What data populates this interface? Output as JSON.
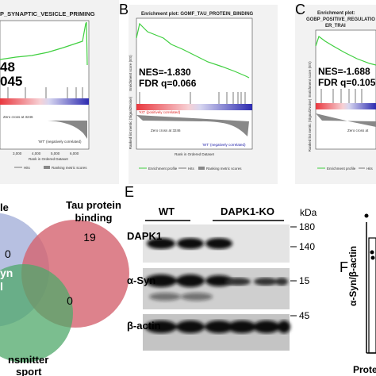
{
  "panel_a": {
    "title": "P_SYNAPTIC_VESICLE_PRIMING",
    "nes": "48",
    "fdr": "045",
    "neg_label": "'WT' (negatively correlated)",
    "zero_label": "Zero cross at 3246",
    "xticks": [
      "3,000",
      "4,000",
      "5,000",
      "6,000"
    ],
    "xlabel": "Rank in Ordered Dataset",
    "legend": [
      "Hits",
      "Ranking metric scores"
    ]
  },
  "panel_b": {
    "letter": "B",
    "title": "Enrichment plot: GOMF_TAU_PROTEIN_BINDING",
    "nes": "NES=-1.830",
    "fdr": "FDR q=0.066",
    "ylabel": "Enrichment score (ES)",
    "ylabel2": "Ranked list metric (Signal2Noise)",
    "pos_label": "'KO' (positively correlated)",
    "neg_label": "'WT' (negatively correlated)",
    "zero_label": "Zero cross at 3246",
    "xlabel": "Rank in Ordered Dataset",
    "legend": [
      "Enrichment profile",
      "Hits",
      "Ranking metric scores"
    ]
  },
  "panel_c": {
    "letter": "C",
    "title": [
      "Enrichment plot:",
      "GOBP_POSITIVE_REGULATIO",
      "ER_TRAI"
    ],
    "nes": "NES=-1.688",
    "fdr": "FDR q=0.105",
    "ylabel": "Enrichment score (ES)",
    "ylabel2": "Ranked list metric (Signal2Noise)",
    "zero_label": "Zero cross at",
    "legend": [
      "Enrichment profile",
      "Hits"
    ]
  },
  "panel_d": {
    "set_left": "le",
    "set_tau": [
      "Tau protein",
      "binding"
    ],
    "set_trans": [
      "nsmitter",
      "sport"
    ],
    "count_tau": "19",
    "count_top": "0",
    "count_low": "0",
    "center": "yn",
    "center2": "l"
  },
  "panel_e": {
    "letter": "E",
    "groups": [
      "WT",
      "DAPK1-KO"
    ],
    "unit": "kDa",
    "rows": [
      "DAPK1",
      "α-Syn",
      "β-actin"
    ],
    "markers": [
      "180",
      "140",
      "15",
      "45"
    ]
  },
  "panel_f": {
    "letter": "F",
    "ylabel": "α-Syn/β-actin",
    "xlabel": "Prote"
  }
}
